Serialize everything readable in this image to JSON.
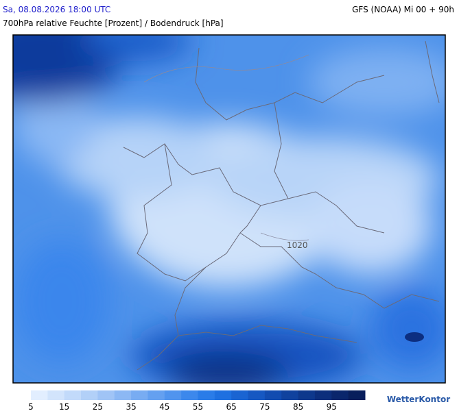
{
  "header": {
    "valid_time": "Sa, 08.08.2026 18:00 UTC",
    "model_run": "GFS (NOAA) Mi 00 + 90h",
    "title": "700hPa relative Feuchte [Prozent] / Bodendruck [hPa]"
  },
  "map": {
    "isobar_labels": [
      "1020"
    ]
  },
  "legend": {
    "ticks": [
      5,
      15,
      25,
      35,
      45,
      55,
      65,
      75,
      85,
      95
    ],
    "colors": [
      "#e2eeff",
      "#d2e4fc",
      "#c2dafa",
      "#b2d0f8",
      "#a0c4f6",
      "#8cb8f4",
      "#78acf2",
      "#64a0f0",
      "#5094ee",
      "#3c88ec",
      "#2a7ce8",
      "#1e70e0",
      "#1a64d2",
      "#1658c2",
      "#124cb0",
      "#10429e",
      "#0e388c",
      "#0c2e7c",
      "#0a266c",
      "#081e5c"
    ]
  },
  "brand": "WetterKontor"
}
